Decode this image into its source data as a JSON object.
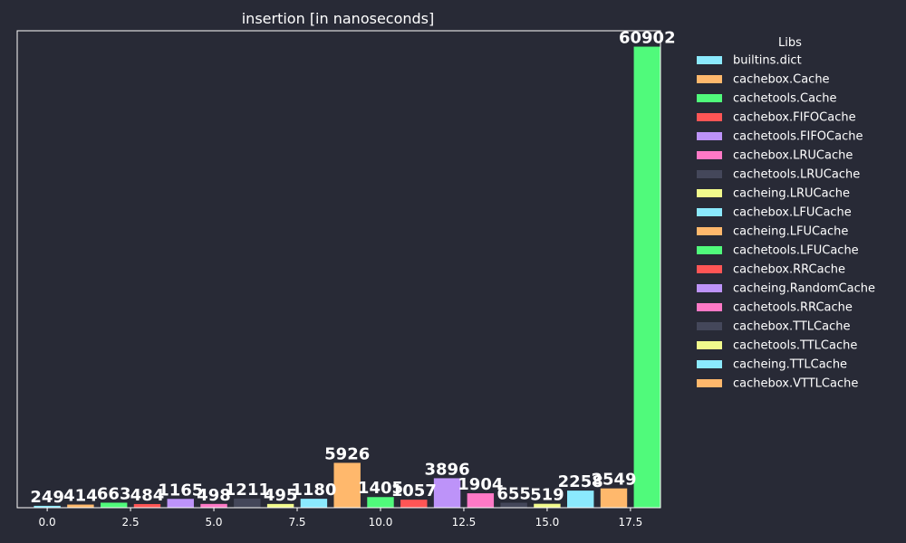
{
  "chart_data": {
    "type": "bar",
    "title": "insertion [in nanoseconds]",
    "xlabel": "",
    "ylabel": "",
    "xlim": [
      -0.9,
      18.4
    ],
    "ylim": [
      0,
      63000
    ],
    "x_ticks": [
      0.0,
      2.5,
      5.0,
      7.5,
      10.0,
      12.5,
      15.0,
      17.5
    ],
    "x_tick_labels": [
      "0.0",
      "2.5",
      "5.0",
      "7.5",
      "10.0",
      "12.5",
      "15.0",
      "17.5"
    ],
    "grid": false,
    "legend": {
      "title": "Libs",
      "placement": "right"
    },
    "bar_width": 0.8,
    "series": [
      {
        "name": "builtins.dict",
        "x": 0,
        "value": 249,
        "label": "249",
        "color": "#8be9fd"
      },
      {
        "name": "cachebox.Cache",
        "x": 1,
        "value": 414,
        "label": "414",
        "color": "#ffb86c"
      },
      {
        "name": "cachetools.Cache",
        "x": 2,
        "value": 663,
        "label": "663",
        "color": "#50fa7b"
      },
      {
        "name": "cachebox.FIFOCache",
        "x": 3,
        "value": 484,
        "label": "484",
        "color": "#ff5555"
      },
      {
        "name": "cachetools.FIFOCache",
        "x": 4,
        "value": 1165,
        "label": "1165",
        "color": "#bd93f9"
      },
      {
        "name": "cachebox.LRUCache",
        "x": 5,
        "value": 498,
        "label": "498",
        "color": "#ff79c6"
      },
      {
        "name": "cachetools.LRUCache",
        "x": 6,
        "value": 1211,
        "label": "1211",
        "color": "#44475a"
      },
      {
        "name": "cacheing.LRUCache",
        "x": 7,
        "value": 495,
        "label": "495",
        "color": "#f1fa8c"
      },
      {
        "name": "cachebox.LFUCache",
        "x": 8,
        "value": 1180,
        "label": "1180",
        "color": "#8be9fd"
      },
      {
        "name": "cacheing.LFUCache",
        "x": 9,
        "value": 5926,
        "label": "5926",
        "color": "#ffb86c"
      },
      {
        "name": "cachetools.LFUCache",
        "x": 10,
        "value": 1405,
        "label": "1405",
        "color": "#50fa7b"
      },
      {
        "name": "cachebox.RRCache",
        "x": 11,
        "value": 1057,
        "label": "1057",
        "color": "#ff5555"
      },
      {
        "name": "cacheing.RandomCache",
        "x": 12,
        "value": 3896,
        "label": "3896",
        "color": "#bd93f9"
      },
      {
        "name": "cachetools.RRCache",
        "x": 13,
        "value": 1904,
        "label": "1904",
        "color": "#ff79c6"
      },
      {
        "name": "cachebox.TTLCache",
        "x": 14,
        "value": 655,
        "label": "655",
        "color": "#44475a"
      },
      {
        "name": "cachetools.TTLCache",
        "x": 15,
        "value": 519,
        "label": "519",
        "color": "#f1fa8c"
      },
      {
        "name": "cacheing.TTLCache",
        "x": 16,
        "value": 2258,
        "label": "2258",
        "color": "#8be9fd"
      },
      {
        "name": "cachebox.VTTLCache",
        "x": 17,
        "value": 2549,
        "label": "2549",
        "color": "#ffb86c"
      },
      {
        "name": "",
        "x": 18,
        "value": 60902,
        "label": "60902",
        "color": "#50fa7b"
      }
    ]
  }
}
